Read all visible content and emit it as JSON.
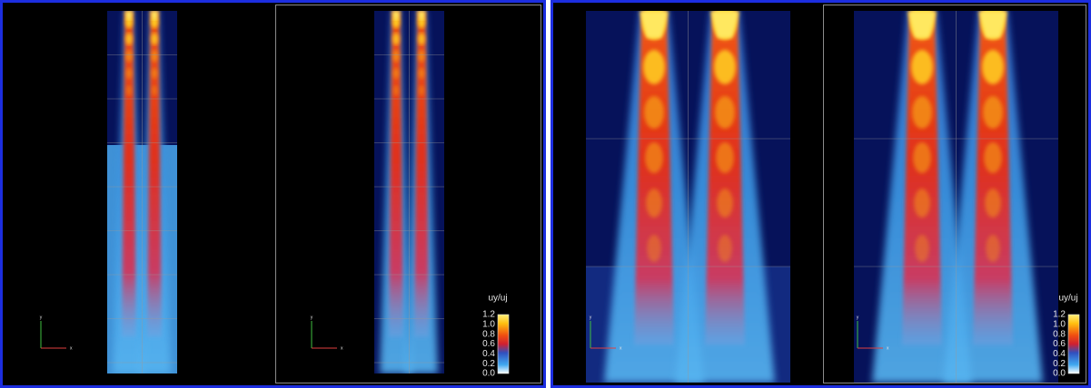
{
  "panels": [
    {
      "views": [
        {
          "axes": {
            "x": "x",
            "y": "y"
          }
        },
        {
          "axes": {
            "x": "x",
            "y": "y"
          }
        }
      ],
      "colorbar": {
        "title": "uy/uj",
        "ticks": [
          "1.2",
          "1.0",
          "0.8",
          "0.6",
          "0.4",
          "0.2",
          "0.0"
        ]
      }
    },
    {
      "views": [
        {
          "axes": {
            "x": "x",
            "y": "y"
          }
        },
        {
          "axes": {
            "x": "x",
            "y": "y"
          }
        }
      ],
      "colorbar": {
        "title": "uy/uj",
        "ticks": [
          "1.2",
          "1.0",
          "0.8",
          "0.6",
          "0.4",
          "0.2",
          "0.0"
        ]
      }
    }
  ]
}
